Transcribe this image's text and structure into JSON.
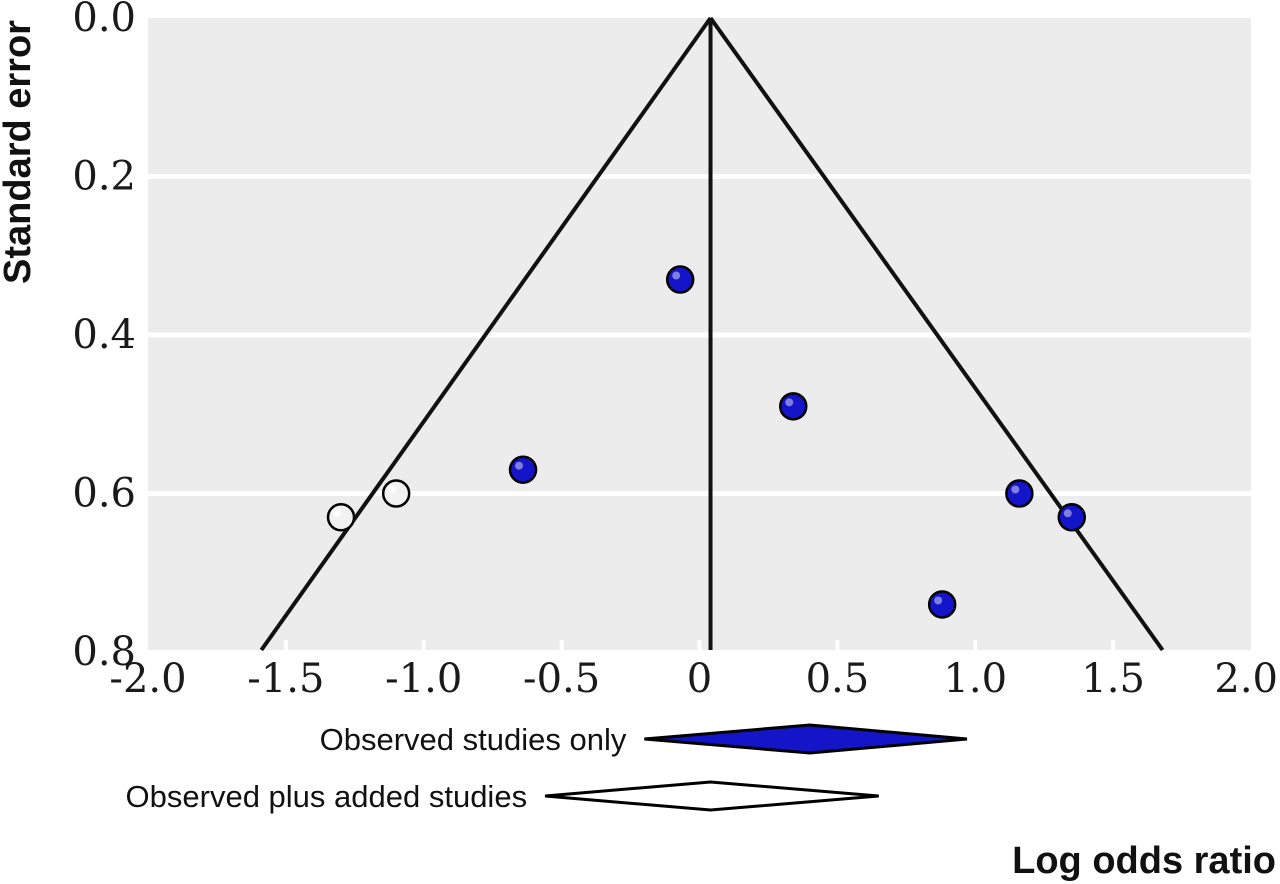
{
  "chart_data": {
    "type": "scatter",
    "subtype": "funnel plot",
    "xlabel": "Log odds ratio",
    "ylabel": "Standard error",
    "xlim": [
      -2.0,
      2.0
    ],
    "ylim": [
      0.0,
      0.8
    ],
    "y_inverted": true,
    "x_ticks": [
      "-2.0",
      "-1.5",
      "-1.0",
      "-0.5",
      "0",
      "0.5",
      "1.0",
      "1.5",
      "2.0"
    ],
    "y_ticks": [
      "0.0",
      "0.2",
      "0.4",
      "0.6",
      "0.8"
    ],
    "grid": true,
    "center_line_x": 0.04,
    "funnel_apex": {
      "x": 0.04,
      "y": 0.0
    },
    "funnel_edges_at_y_0_8": [
      -1.53,
      1.62
    ],
    "series": [
      {
        "marker": "filled",
        "color": "#1414c8",
        "points": [
          {
            "x": -0.07,
            "y": 0.33
          },
          {
            "x": 0.34,
            "y": 0.49
          },
          {
            "x": -0.64,
            "y": 0.57
          },
          {
            "x": 1.16,
            "y": 0.6
          },
          {
            "x": 1.35,
            "y": 0.63
          },
          {
            "x": 0.88,
            "y": 0.74
          }
        ]
      },
      {
        "marker": "open",
        "color": "#f2f2f2",
        "points": [
          {
            "x": -1.3,
            "y": 0.63
          },
          {
            "x": -1.1,
            "y": 0.6
          }
        ]
      }
    ],
    "summary_diamonds": [
      {
        "label": "Observed studies only",
        "low": -0.2,
        "estimate": 0.4,
        "high": 0.97,
        "fill": "#1414c8"
      },
      {
        "label": "Observed plus added studies",
        "low": -0.56,
        "estimate": 0.04,
        "high": 0.65,
        "fill": "#ffffff"
      }
    ]
  }
}
